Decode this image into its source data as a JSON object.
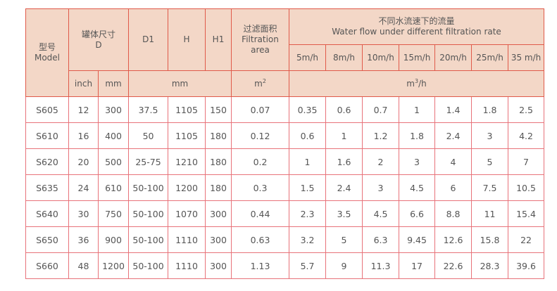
{
  "header": {
    "model_zh": "型号",
    "model_en": "Model",
    "d_zh": "罐体尺寸",
    "d_en": "D",
    "d1": "D1",
    "h": "H",
    "h1": "H1",
    "area_zh": "过滤面积",
    "area_en1": "Filtration",
    "area_en2": "area",
    "flow_zh": "不同水流速下的流量",
    "flow_en": "Water flow under different filtration rate",
    "rates": [
      "5m/h",
      "8m/h",
      "10m/h",
      "15m/h",
      "20m/h",
      "25m/h",
      "35 m/h"
    ],
    "unit_inch": "inch",
    "unit_mm": "mm",
    "unit_mm2": "mm",
    "unit_m": "m",
    "unit_m_sup": "2",
    "unit_flow": "m",
    "unit_flow_sup": "3",
    "unit_flow_tail": "/h"
  },
  "colors": {
    "header_bg": "#f3d7c7",
    "border": "#e05a4a",
    "text": "#555555"
  },
  "rows": [
    [
      "S605",
      "12",
      "300",
      "37.5",
      "1105",
      "150",
      "0.07",
      "0.35",
      "0.6",
      "0.7",
      "1",
      "1.4",
      "1.8",
      "2.5"
    ],
    [
      "S610",
      "16",
      "400",
      "50",
      "1105",
      "180",
      "0.12",
      "0.6",
      "1",
      "1.2",
      "1.8",
      "2.4",
      "3",
      "4.2"
    ],
    [
      "S620",
      "20",
      "500",
      "25-75",
      "1210",
      "180",
      "0.2",
      "1",
      "1.6",
      "2",
      "3",
      "4",
      "5",
      "7"
    ],
    [
      "S635",
      "24",
      "610",
      "50-100",
      "1200",
      "180",
      "0.3",
      "1.5",
      "2.4",
      "3",
      "4.5",
      "6",
      "7.5",
      "10.5"
    ],
    [
      "S640",
      "30",
      "750",
      "50-100",
      "1070",
      "300",
      "0.44",
      "2.3",
      "3.5",
      "4.5",
      "6.6",
      "8.8",
      "11",
      "15.4"
    ],
    [
      "S650",
      "36",
      "900",
      "50-100",
      "1110",
      "300",
      "0.63",
      "3.2",
      "5",
      "6.3",
      "9.45",
      "12.6",
      "15.8",
      "22"
    ],
    [
      "S660",
      "48",
      "1200",
      "50-100",
      "1110",
      "300",
      "1.13",
      "5.7",
      "9",
      "11.3",
      "17",
      "22.6",
      "28.3",
      "39.6"
    ]
  ]
}
